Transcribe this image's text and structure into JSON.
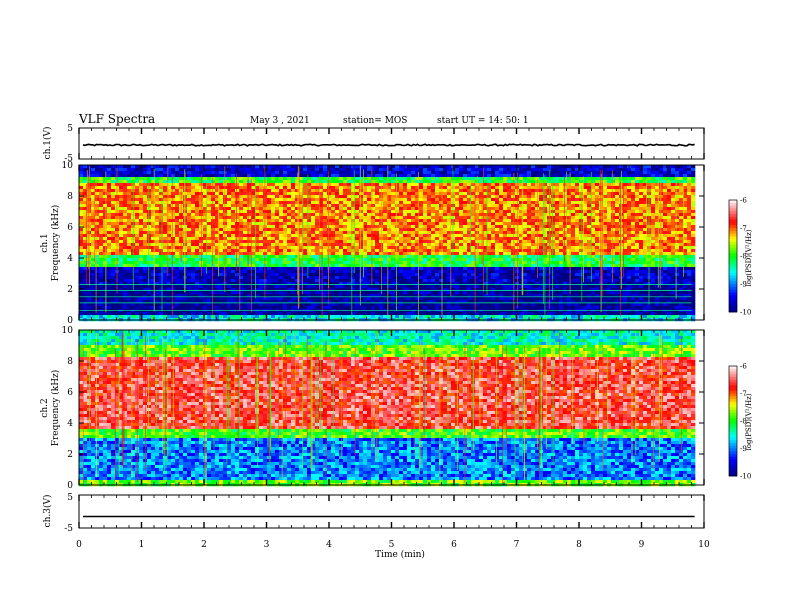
{
  "header": {
    "title": "VLF Spectra",
    "date": "May 3 , 2021",
    "station": "station= MOS",
    "start": "start UT = 14: 50: 1"
  },
  "chart_data": [
    {
      "type": "line",
      "name": "ch1-waveform",
      "ylabel": "ch.1(V)",
      "yticks": [
        "5",
        "-5"
      ],
      "ylim": [
        -5,
        5
      ],
      "xlim": [
        0,
        10
      ],
      "baseline_value": -0.5
    },
    {
      "type": "heatmap",
      "name": "ch1-spectrogram",
      "ylabel_line1": "ch.1",
      "ylabel_line2": "Frequency (kHz)",
      "yticks": [
        "0",
        "2",
        "4",
        "6",
        "8",
        "10"
      ],
      "ylim": [
        0,
        10
      ],
      "xlim": [
        0,
        10
      ],
      "data_end_min": 9.8,
      "colorbar": {
        "label": "log(PSD)(V²/Hz)",
        "ticks": [
          "-6",
          "-7",
          "-8",
          "-9",
          "-10"
        ],
        "range": [
          -10,
          -6
        ]
      },
      "bands": [
        {
          "f_low": 9.3,
          "f_high": 10.0,
          "level": -9.6
        },
        {
          "f_low": 8.8,
          "f_high": 9.3,
          "level": -8.0
        },
        {
          "f_low": 4.2,
          "f_high": 8.8,
          "level": -7.1
        },
        {
          "f_low": 3.4,
          "f_high": 4.2,
          "level": -8.1
        },
        {
          "f_low": 2.2,
          "f_high": 3.4,
          "level": -9.7
        },
        {
          "f_low": 0.3,
          "f_high": 2.2,
          "level": -9.9
        },
        {
          "f_low": 0.0,
          "f_high": 0.3,
          "level": -8.6
        }
      ],
      "lines_khz": [
        0.6,
        1.1,
        1.5,
        1.9,
        2.3
      ]
    },
    {
      "type": "heatmap",
      "name": "ch2-spectrogram",
      "ylabel_line1": "ch.2",
      "ylabel_line2": "Frequency (kHz)",
      "yticks": [
        "0",
        "2",
        "4",
        "6",
        "8",
        "10"
      ],
      "ylim": [
        0,
        10
      ],
      "xlim": [
        0,
        10
      ],
      "data_end_min": 9.8,
      "colorbar": {
        "label": "log(PSD)(V²/Hz)",
        "ticks": [
          "-6",
          "-7",
          "-8",
          "-9",
          "-10"
        ],
        "range": [
          -10,
          -6
        ]
      },
      "bands": [
        {
          "f_low": 9.0,
          "f_high": 10.0,
          "level": -8.5
        },
        {
          "f_low": 8.2,
          "f_high": 9.0,
          "level": -7.8
        },
        {
          "f_low": 3.6,
          "f_high": 8.2,
          "level": -6.6
        },
        {
          "f_low": 3.0,
          "f_high": 3.6,
          "level": -7.9
        },
        {
          "f_low": 0.3,
          "f_high": 3.0,
          "level": -9.0
        },
        {
          "f_low": 0.0,
          "f_high": 0.3,
          "level": -7.8
        }
      ],
      "lines_khz": []
    },
    {
      "type": "line",
      "name": "ch3-waveform",
      "ylabel": "ch.3(V)",
      "yticks": [
        "5",
        "-5"
      ],
      "ylim": [
        -5,
        5
      ],
      "xlim": [
        0,
        10
      ],
      "baseline_value": -1.5
    }
  ],
  "xaxis": {
    "label": "Time (min)",
    "ticks": [
      "0",
      "1",
      "2",
      "3",
      "4",
      "5",
      "6",
      "7",
      "8",
      "9",
      "10"
    ]
  }
}
